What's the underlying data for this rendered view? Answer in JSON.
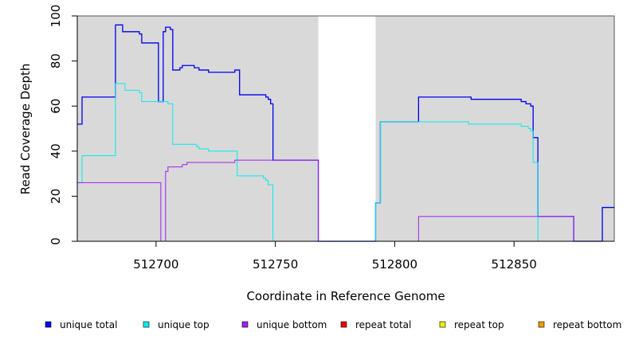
{
  "chart_data": {
    "type": "line",
    "xlabel": "Coordinate in Reference Genome",
    "ylabel": "Read Coverage Depth",
    "xlim": [
      512667,
      512892
    ],
    "ylim": [
      0,
      100
    ],
    "x_ticks": [
      512700,
      512750,
      512800,
      512850
    ],
    "y_ticks": [
      0,
      20,
      40,
      60,
      80,
      100
    ],
    "shaded_regions": [
      [
        512667,
        512768
      ],
      [
        512792,
        512892
      ]
    ],
    "legend_position": "bottom",
    "series": [
      {
        "name": "unique total",
        "color": "#0000ee",
        "values": [
          [
            512667,
            52
          ],
          [
            512669,
            64
          ],
          [
            512683,
            96
          ],
          [
            512686,
            93
          ],
          [
            512693,
            92
          ],
          [
            512694,
            88
          ],
          [
            512701,
            62
          ],
          [
            512703,
            93
          ],
          [
            512704,
            95
          ],
          [
            512706,
            94
          ],
          [
            512707,
            76
          ],
          [
            512710,
            77
          ],
          [
            512711,
            78
          ],
          [
            512716,
            77
          ],
          [
            512718,
            76
          ],
          [
            512722,
            75
          ],
          [
            512733,
            76
          ],
          [
            512735,
            65
          ],
          [
            512746,
            64
          ],
          [
            512747,
            63
          ],
          [
            512748,
            61
          ],
          [
            512749,
            36
          ],
          [
            512768,
            0
          ],
          [
            512792,
            17
          ],
          [
            512794,
            53
          ],
          [
            512810,
            64
          ],
          [
            512832,
            63
          ],
          [
            512853,
            62
          ],
          [
            512855,
            61
          ],
          [
            512857,
            60
          ],
          [
            512858,
            46
          ],
          [
            512860,
            11
          ],
          [
            512875,
            0
          ],
          [
            512887,
            15
          ],
          [
            512892,
            15
          ]
        ]
      },
      {
        "name": "unique top",
        "color": "#00eeee",
        "values": [
          [
            512667,
            26
          ],
          [
            512669,
            38
          ],
          [
            512683,
            70
          ],
          [
            512687,
            67
          ],
          [
            512693,
            66
          ],
          [
            512694,
            62
          ],
          [
            512705,
            61
          ],
          [
            512707,
            43
          ],
          [
            512717,
            42
          ],
          [
            512718,
            41
          ],
          [
            512722,
            40
          ],
          [
            512734,
            29
          ],
          [
            512745,
            28
          ],
          [
            512746,
            27
          ],
          [
            512747,
            25
          ],
          [
            512749,
            0
          ],
          [
            512768,
            0
          ],
          [
            512792,
            17
          ],
          [
            512794,
            53
          ],
          [
            512831,
            52
          ],
          [
            512853,
            51
          ],
          [
            512856,
            50
          ],
          [
            512857,
            49
          ],
          [
            512858,
            35
          ],
          [
            512860,
            0
          ],
          [
            512892,
            0
          ]
        ]
      },
      {
        "name": "unique bottom",
        "color": "#a020f0",
        "values": [
          [
            512667,
            26
          ],
          [
            512702,
            0
          ],
          [
            512704,
            31
          ],
          [
            512705,
            33
          ],
          [
            512711,
            34
          ],
          [
            512713,
            35
          ],
          [
            512733,
            36
          ],
          [
            512768,
            0
          ],
          [
            512810,
            11
          ],
          [
            512875,
            0
          ],
          [
            512892,
            0
          ]
        ]
      },
      {
        "name": "repeat total",
        "color": "#ee0000",
        "values": [
          [
            512667,
            0
          ],
          [
            512892,
            0
          ]
        ]
      },
      {
        "name": "repeat top",
        "color": "#eeee00",
        "values": [
          [
            512667,
            0
          ],
          [
            512892,
            0
          ]
        ]
      },
      {
        "name": "repeat bottom",
        "color": "#ee9a00",
        "values": [
          [
            512667,
            0
          ],
          [
            512892,
            0
          ]
        ]
      }
    ]
  }
}
